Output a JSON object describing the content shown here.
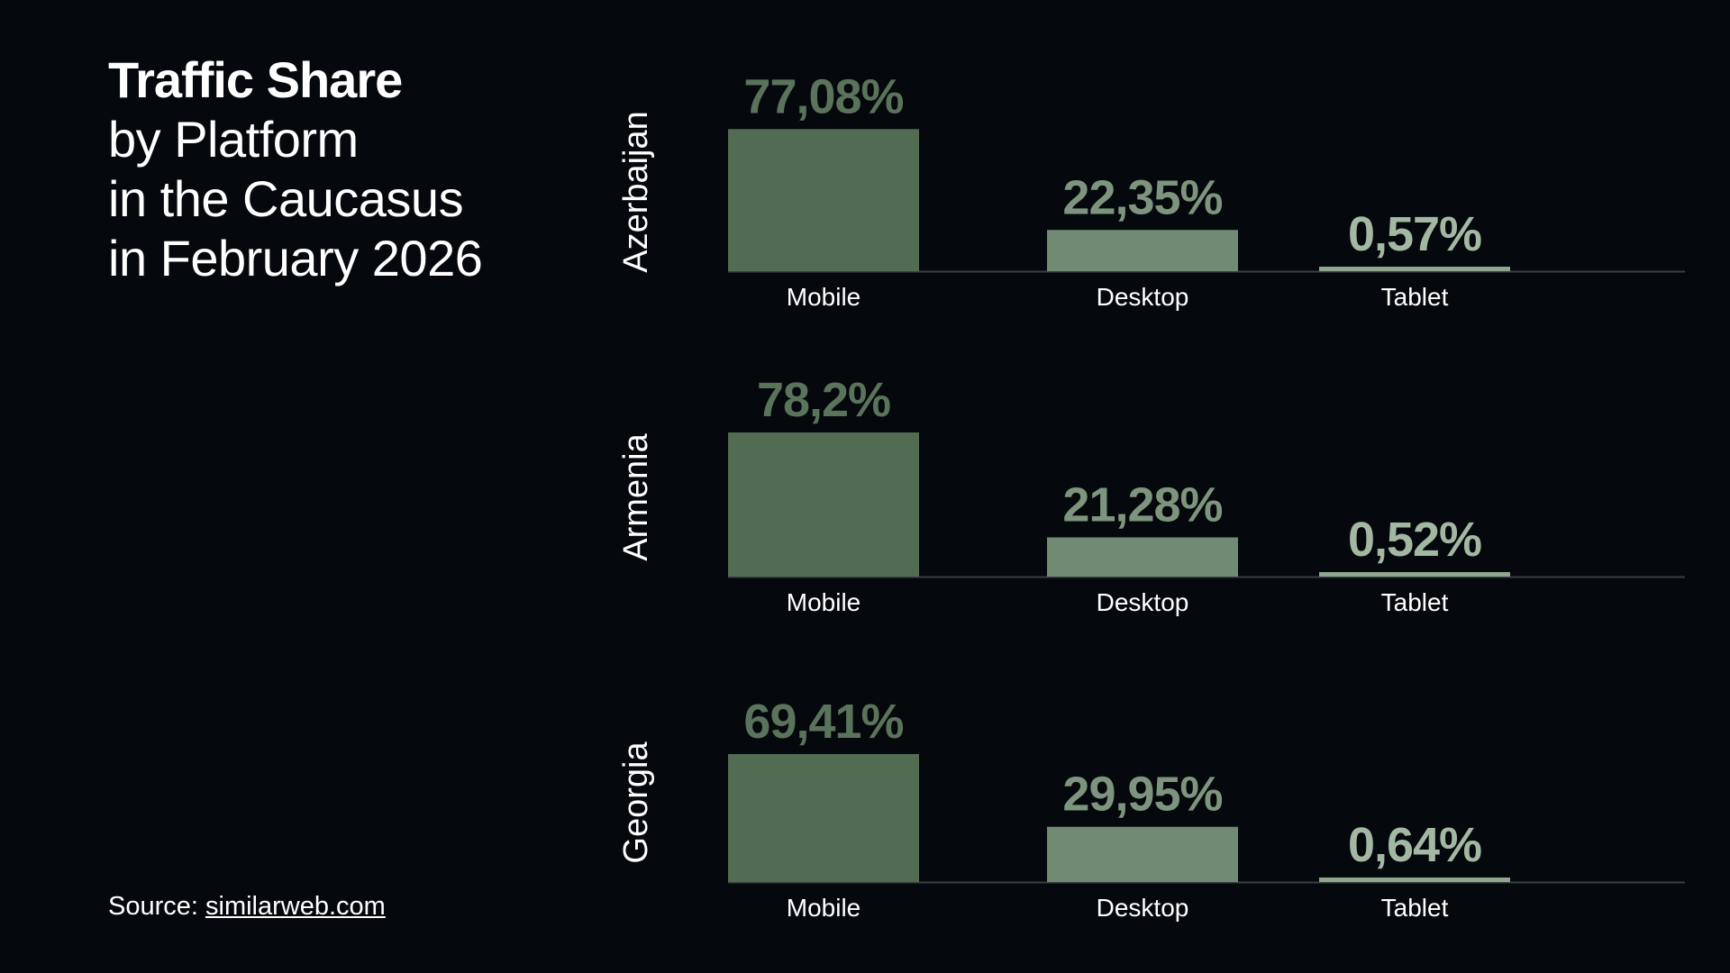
{
  "title": {
    "bold": "Traffic Share",
    "lines": [
      "by Platform",
      "in the Caucasus",
      "in February 2026"
    ]
  },
  "source": {
    "prefix": "Source: ",
    "link_text": "similarweb.com"
  },
  "colors": {
    "background": "#05080d",
    "mobile_bar": "#526b53",
    "desktop_bar": "#718a73",
    "tablet_bar": "#8fa68f",
    "mobile_label": "#5a735b",
    "desktop_label": "#7d957e",
    "tablet_label": "#a3b8a3",
    "axis": "#3a3f44"
  },
  "chart_data": {
    "type": "bar",
    "categories": [
      "Mobile",
      "Desktop",
      "Tablet"
    ],
    "panels": [
      {
        "name": "Azerbaijan",
        "values": [
          77.08
        ],
        "labels": [
          "77,08%",
          "22,35%",
          "0,57%"
        ],
        "all_values": [
          77.08,
          22.35,
          0.57
        ]
      },
      {
        "name": "Armenia",
        "labels": [
          "78,2%",
          "21,28%",
          "0,52%"
        ],
        "all_values": [
          78.2,
          21.28,
          0.52
        ]
      },
      {
        "name": "Georgia",
        "labels": [
          "69,41%",
          "29,95%",
          "0,64%"
        ],
        "all_values": [
          69.41,
          29.95,
          0.64
        ]
      }
    ],
    "ylim": [
      0,
      78.2
    ]
  }
}
